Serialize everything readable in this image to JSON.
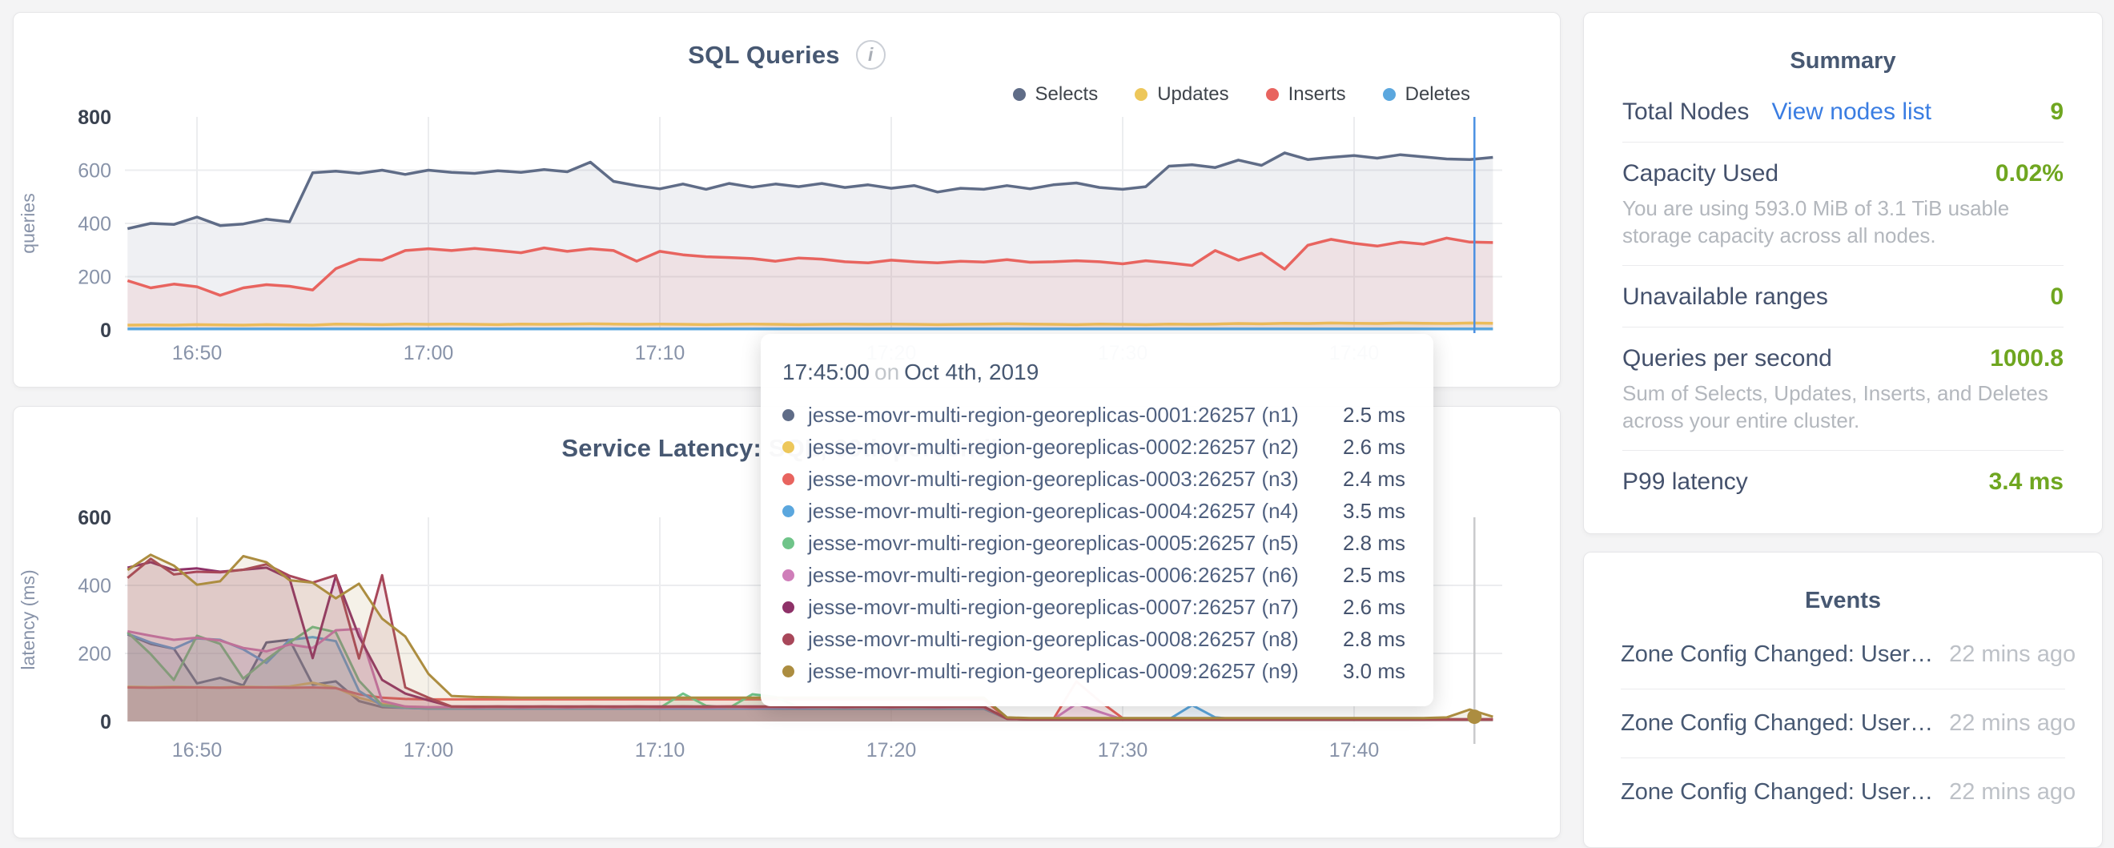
{
  "accent_colors": {
    "link_blue": "#3A7DE2",
    "metric_green": "#6FA620",
    "hover_line_blue": "#4A90E2",
    "hover_line_gray": "#C9CACC"
  },
  "chart_data": [
    {
      "type": "area",
      "title": "SQL Queries",
      "ylabel": "queries",
      "ylim": [
        0,
        800
      ],
      "y_ticks": [
        0,
        200,
        400,
        600,
        800
      ],
      "x_base_time": "16:45",
      "x_tick_minutes": [
        5,
        15,
        25,
        35,
        45,
        55
      ],
      "x_tick_labels": [
        "16:50",
        "17:00",
        "17:10",
        "17:20",
        "17:30",
        "17:40"
      ],
      "x_start_min": 2,
      "x_step_min": 1,
      "grid": true,
      "legend_position": "top-right",
      "hover": {
        "x_min": 60.2,
        "color": "#4A90E2"
      },
      "series": [
        {
          "name": "Selects",
          "short": "selects",
          "color": "#5F6C87",
          "values": [
            380,
            400,
            396,
            424,
            392,
            398,
            416,
            406,
            590,
            596,
            588,
            600,
            584,
            600,
            592,
            588,
            598,
            592,
            602,
            594,
            630,
            558,
            542,
            530,
            548,
            528,
            550,
            536,
            548,
            538,
            550,
            535,
            545,
            532,
            542,
            518,
            532,
            528,
            542,
            530,
            545,
            552,
            535,
            528,
            538,
            615,
            620,
            610,
            638,
            618,
            665,
            640,
            648,
            655,
            645,
            658,
            650,
            642,
            640,
            648
          ]
        },
        {
          "name": "Updates",
          "short": "updates",
          "color": "#EDC75A",
          "values": [
            18,
            19,
            18,
            20,
            19,
            18,
            20,
            19,
            18,
            22,
            21,
            20,
            22,
            21,
            22,
            21,
            20,
            22,
            21,
            22,
            23,
            22,
            21,
            22,
            21,
            20,
            21,
            22,
            21,
            20,
            21,
            22,
            21,
            22,
            21,
            20,
            21,
            22,
            23,
            22,
            21,
            20,
            22,
            21,
            20,
            22,
            21,
            22,
            24,
            23,
            25,
            24,
            26,
            25,
            24,
            26,
            25,
            24,
            26,
            25
          ]
        },
        {
          "name": "Inserts",
          "short": "inserts",
          "color": "#E8645F",
          "values": [
            185,
            158,
            172,
            162,
            130,
            158,
            170,
            164,
            150,
            230,
            265,
            262,
            298,
            305,
            298,
            306,
            298,
            290,
            308,
            295,
            305,
            298,
            258,
            295,
            282,
            275,
            272,
            268,
            258,
            270,
            266,
            256,
            252,
            262,
            256,
            252,
            258,
            255,
            264,
            254,
            256,
            260,
            256,
            248,
            260,
            252,
            242,
            298,
            262,
            288,
            228,
            318,
            340,
            325,
            315,
            330,
            322,
            345,
            330,
            328
          ]
        },
        {
          "name": "Deletes",
          "short": "deletes",
          "color": "#5BA7DE",
          "values": [
            4,
            4,
            4,
            4,
            4,
            4,
            4,
            4,
            4,
            4,
            4,
            4,
            4,
            4,
            4,
            4,
            4,
            4,
            4,
            4,
            4,
            4,
            4,
            4,
            4,
            4,
            4,
            4,
            4,
            4,
            4,
            4,
            4,
            4,
            4,
            4,
            4,
            4,
            4,
            4,
            4,
            4,
            4,
            4,
            4,
            4,
            4,
            4,
            4,
            4,
            4,
            4,
            4,
            4,
            4,
            4,
            4,
            4,
            4,
            4
          ]
        }
      ]
    },
    {
      "type": "area",
      "title": "Service Latency: SQL, 99th percentile",
      "ylabel": "latency (ms)",
      "ylim": [
        0,
        600
      ],
      "y_ticks": [
        0,
        200,
        400,
        600
      ],
      "x_base_time": "16:45",
      "x_tick_minutes": [
        5,
        15,
        25,
        35,
        45,
        55
      ],
      "x_tick_labels": [
        "16:50",
        "17:00",
        "17:10",
        "17:20",
        "17:30",
        "17:40"
      ],
      "x_start_min": 2,
      "x_step_min": 1,
      "grid": true,
      "hover": {
        "x_min": 60.2,
        "color": "#C9CACC",
        "point": {
          "value": 14,
          "color": "#AC8D40"
        }
      },
      "series": [
        {
          "name": "jesse-movr-multi-region-georeplicas-0001:26257 (n1)",
          "short": "n1",
          "color": "#5F6C87",
          "values": [
            256,
            228,
            214,
            112,
            128,
            106,
            232,
            240,
            108,
            118,
            60,
            42,
            40,
            38,
            38,
            38,
            38,
            38,
            38,
            38,
            38,
            38,
            38,
            38,
            38,
            38,
            38,
            38,
            38,
            38,
            38,
            38,
            38,
            38,
            38,
            38,
            38,
            38,
            8,
            6,
            6,
            6,
            6,
            6,
            6,
            6,
            6,
            6,
            6,
            6,
            6,
            6,
            6,
            6,
            6,
            6,
            6,
            6,
            6,
            6
          ]
        },
        {
          "name": "jesse-movr-multi-region-georeplicas-0002:26257 (n2)",
          "short": "n2",
          "color": "#EDC75A",
          "values": [
            102,
            101,
            102,
            101,
            100,
            102,
            101,
            103,
            114,
            99,
            70,
            52,
            44,
            42,
            42,
            42,
            42,
            42,
            42,
            42,
            42,
            42,
            42,
            42,
            42,
            42,
            42,
            42,
            42,
            42,
            42,
            42,
            42,
            42,
            42,
            42,
            42,
            42,
            8,
            6,
            6,
            6,
            6,
            6,
            6,
            6,
            6,
            6,
            6,
            6,
            6,
            6,
            6,
            6,
            6,
            6,
            6,
            6,
            6,
            6
          ]
        },
        {
          "name": "jesse-movr-multi-region-georeplicas-0003:26257 (n3)",
          "short": "n3",
          "color": "#E8645F",
          "values": [
            100,
            99,
            100,
            100,
            99,
            100,
            100,
            99,
            100,
            98,
            80,
            70,
            66,
            65,
            65,
            65,
            65,
            65,
            65,
            65,
            65,
            65,
            65,
            65,
            65,
            65,
            65,
            65,
            65,
            65,
            65,
            65,
            65,
            65,
            65,
            65,
            65,
            65,
            8,
            6,
            6,
            118,
            60,
            10,
            6,
            6,
            6,
            6,
            6,
            6,
            6,
            6,
            6,
            6,
            6,
            6,
            6,
            6,
            6,
            6
          ]
        },
        {
          "name": "jesse-movr-multi-region-georeplicas-0004:26257 (n4)",
          "short": "n4",
          "color": "#5BA7DE",
          "values": [
            258,
            232,
            214,
            244,
            240,
            212,
            172,
            240,
            248,
            236,
            90,
            46,
            40,
            38,
            38,
            38,
            38,
            38,
            38,
            38,
            38,
            38,
            38,
            38,
            38,
            38,
            38,
            38,
            38,
            38,
            38,
            38,
            38,
            38,
            38,
            38,
            38,
            38,
            8,
            6,
            6,
            6,
            6,
            6,
            6,
            6,
            48,
            12,
            6,
            6,
            6,
            6,
            6,
            6,
            6,
            6,
            6,
            6,
            6,
            6
          ]
        },
        {
          "name": "jesse-movr-multi-region-georeplicas-0005:26257 (n5)",
          "short": "n5",
          "color": "#6FC489",
          "values": [
            262,
            198,
            122,
            252,
            228,
            126,
            182,
            232,
            278,
            262,
            120,
            48,
            42,
            40,
            40,
            40,
            40,
            40,
            40,
            40,
            40,
            40,
            40,
            40,
            82,
            46,
            40,
            80,
            72,
            42,
            40,
            40,
            40,
            40,
            40,
            40,
            40,
            40,
            8,
            6,
            6,
            6,
            6,
            6,
            6,
            6,
            6,
            6,
            6,
            6,
            6,
            6,
            6,
            6,
            6,
            6,
            6,
            6,
            6,
            6
          ]
        },
        {
          "name": "jesse-movr-multi-region-georeplicas-0006:26257 (n6)",
          "short": "n6",
          "color": "#CF7EB9",
          "values": [
            265,
            252,
            240,
            246,
            238,
            216,
            206,
            226,
            216,
            268,
            272,
            60,
            44,
            42,
            42,
            41,
            42,
            41,
            42,
            41,
            42,
            41,
            42,
            41,
            42,
            41,
            42,
            41,
            42,
            41,
            42,
            41,
            42,
            41,
            42,
            41,
            42,
            41,
            8,
            6,
            6,
            52,
            28,
            6,
            6,
            6,
            6,
            6,
            6,
            6,
            6,
            6,
            6,
            6,
            6,
            6,
            6,
            6,
            6,
            6
          ]
        },
        {
          "name": "jesse-movr-multi-region-georeplicas-0007:26257 (n7)",
          "short": "n7",
          "color": "#8E3168",
          "values": [
            452,
            468,
            445,
            450,
            440,
            446,
            452,
            420,
            186,
            428,
            250,
            122,
            82,
            62,
            44,
            44,
            44,
            44,
            44,
            44,
            44,
            44,
            44,
            44,
            44,
            44,
            44,
            44,
            44,
            44,
            44,
            44,
            44,
            44,
            44,
            44,
            44,
            44,
            8,
            6,
            6,
            6,
            6,
            6,
            6,
            6,
            6,
            6,
            6,
            6,
            6,
            6,
            6,
            6,
            6,
            6,
            6,
            6,
            6,
            6
          ]
        },
        {
          "name": "jesse-movr-multi-region-georeplicas-0008:26257 (n8)",
          "short": "n8",
          "color": "#A8475A",
          "values": [
            422,
            478,
            432,
            440,
            438,
            446,
            462,
            428,
            408,
            430,
            185,
            430,
            100,
            70,
            44,
            43,
            44,
            43,
            44,
            43,
            44,
            43,
            44,
            43,
            44,
            43,
            44,
            43,
            44,
            43,
            44,
            43,
            44,
            43,
            44,
            43,
            44,
            43,
            8,
            6,
            6,
            6,
            6,
            6,
            6,
            6,
            6,
            6,
            6,
            6,
            6,
            6,
            6,
            6,
            6,
            6,
            6,
            6,
            6,
            6
          ]
        },
        {
          "name": "jesse-movr-multi-region-georeplicas-0009:26257 (n9)",
          "short": "n9",
          "color": "#AC8D40",
          "values": [
            445,
            490,
            458,
            402,
            412,
            486,
            468,
            415,
            408,
            362,
            405,
            302,
            250,
            140,
            75,
            72,
            71,
            70,
            70,
            70,
            70,
            70,
            70,
            70,
            70,
            70,
            70,
            70,
            70,
            70,
            70,
            70,
            70,
            70,
            70,
            70,
            70,
            70,
            12,
            10,
            10,
            10,
            10,
            10,
            10,
            10,
            10,
            10,
            10,
            10,
            10,
            10,
            10,
            10,
            10,
            10,
            10,
            12,
            35,
            14
          ]
        }
      ]
    }
  ],
  "tooltip": {
    "time": "17:45:00",
    "on_word": "on",
    "date": "Oct 4th, 2019",
    "values": [
      "2.5 ms",
      "2.6 ms",
      "2.4 ms",
      "3.5 ms",
      "2.8 ms",
      "2.5 ms",
      "2.6 ms",
      "2.8 ms",
      "3.0 ms"
    ]
  },
  "summary": {
    "title": "Summary",
    "rows": [
      {
        "label": "Total Nodes",
        "link": "View nodes list",
        "value": "9"
      },
      {
        "label": "Capacity Used",
        "value": "0.02%",
        "desc": "You are using 593.0 MiB of 3.1 TiB usable storage capacity across all nodes."
      },
      {
        "label": "Unavailable ranges",
        "value": "0"
      },
      {
        "label": "Queries per second",
        "value": "1000.8",
        "desc": "Sum of Selects, Updates, Inserts, and Deletes across your entire cluster."
      },
      {
        "label": "P99 latency",
        "value": "3.4 ms"
      }
    ]
  },
  "events": {
    "title": "Events",
    "items": [
      {
        "text": "Zone Config Changed: User…",
        "time": "22 mins ago"
      },
      {
        "text": "Zone Config Changed: User…",
        "time": "22 mins ago"
      },
      {
        "text": "Zone Config Changed: User…",
        "time": "22 mins ago"
      }
    ]
  }
}
